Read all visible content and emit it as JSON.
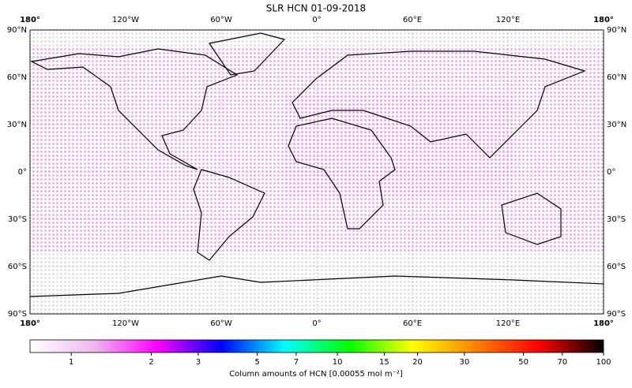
{
  "chart_data": {
    "type": "map",
    "title": "SLR HCN 01-09-2018",
    "xlim": [
      -180,
      180
    ],
    "ylim": [
      -90,
      90
    ],
    "xticks": [
      {
        "value": -180,
        "label": "180°"
      },
      {
        "value": -120,
        "label": "120°W"
      },
      {
        "value": -60,
        "label": "60°W"
      },
      {
        "value": 0,
        "label": "0°"
      },
      {
        "value": 60,
        "label": "60°E"
      },
      {
        "value": 120,
        "label": "120°E"
      },
      {
        "value": 180,
        "label": "180°"
      }
    ],
    "yticks": [
      {
        "value": -90,
        "label": "90°S"
      },
      {
        "value": -60,
        "label": "60°S"
      },
      {
        "value": -30,
        "label": "30°S"
      },
      {
        "value": 0,
        "label": "0°"
      },
      {
        "value": 30,
        "label": "30°N"
      },
      {
        "value": 60,
        "label": "60°N"
      },
      {
        "value": 90,
        "label": "90°N"
      }
    ],
    "grid": true,
    "colorbar": {
      "label": "Column amounts of HCN [0.00055 mol m⁻²]",
      "log": true,
      "clim": [
        0.7,
        100
      ],
      "ticks": [
        1,
        2,
        3,
        5,
        7,
        10,
        15,
        20,
        30,
        50,
        70,
        100
      ],
      "colors": [
        "#ffffff",
        "#f0b8f0",
        "#ff00ff",
        "#0000ff",
        "#00ffff",
        "#00ff00",
        "#ffff00",
        "#ff8000",
        "#ff0000",
        "#000000"
      ]
    }
  }
}
